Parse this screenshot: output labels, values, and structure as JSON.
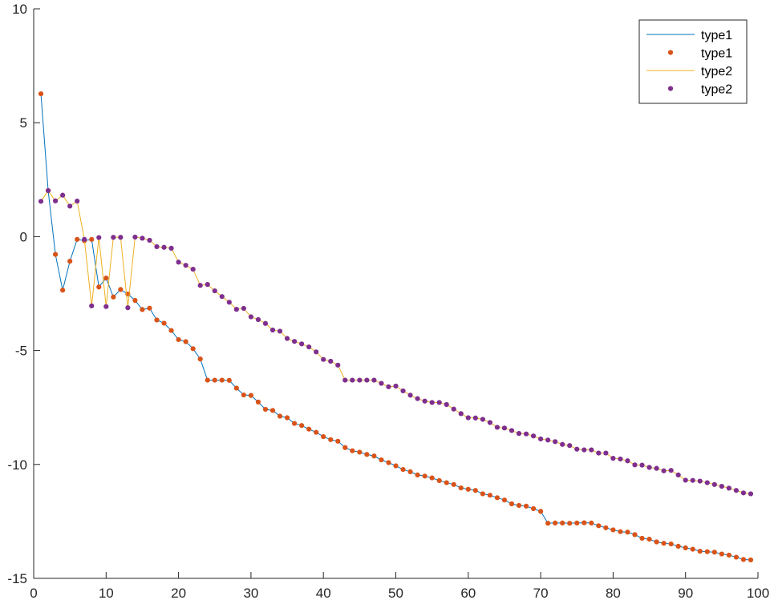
{
  "chart_data": {
    "type": "line",
    "xlim": [
      0,
      100
    ],
    "ylim": [
      -15,
      10
    ],
    "xticks": [
      0,
      10,
      20,
      30,
      40,
      50,
      60,
      70,
      80,
      90,
      100
    ],
    "yticks": [
      -15,
      -10,
      -5,
      0,
      5,
      10
    ],
    "grid": false,
    "legend_placement": "top-right",
    "x": [
      1,
      2,
      3,
      4,
      5,
      6,
      7,
      8,
      9,
      10,
      11,
      12,
      13,
      14,
      15,
      16,
      17,
      18,
      19,
      20,
      21,
      22,
      23,
      24,
      25,
      26,
      27,
      28,
      29,
      30,
      31,
      32,
      33,
      34,
      35,
      36,
      37,
      38,
      39,
      40,
      41,
      42,
      43,
      44,
      45,
      46,
      47,
      48,
      49,
      50,
      51,
      52,
      53,
      54,
      55,
      56,
      57,
      58,
      59,
      60,
      61,
      62,
      63,
      64,
      65,
      66,
      67,
      68,
      69,
      70,
      71,
      72,
      73,
      74,
      75,
      76,
      77,
      78,
      79,
      80,
      81,
      82,
      83,
      84,
      85,
      86,
      87,
      88,
      89,
      90,
      91,
      92,
      93,
      94,
      95,
      96,
      97,
      98,
      99
    ],
    "series": [
      {
        "name": "type1",
        "style": "line",
        "color": "#0072BD",
        "values": [
          6.27,
          2.02,
          -0.78,
          -2.35,
          -1.08,
          -0.12,
          -0.18,
          -0.12,
          -2.21,
          -1.82,
          -2.65,
          -2.32,
          -2.52,
          -2.8,
          -3.2,
          -3.14,
          -3.66,
          -3.8,
          -4.12,
          -4.52,
          -4.61,
          -4.92,
          -5.37,
          -6.3,
          -6.3,
          -6.3,
          -6.31,
          -6.65,
          -6.95,
          -6.97,
          -7.26,
          -7.58,
          -7.63,
          -7.88,
          -7.95,
          -8.2,
          -8.29,
          -8.45,
          -8.59,
          -8.78,
          -8.91,
          -8.98,
          -9.26,
          -9.4,
          -9.46,
          -9.56,
          -9.63,
          -9.8,
          -9.92,
          -10.06,
          -10.22,
          -10.32,
          -10.46,
          -10.51,
          -10.59,
          -10.71,
          -10.8,
          -10.88,
          -11.03,
          -11.09,
          -11.14,
          -11.29,
          -11.35,
          -11.46,
          -11.56,
          -11.73,
          -11.8,
          -11.83,
          -11.94,
          -12.06,
          -12.58,
          -12.57,
          -12.57,
          -12.58,
          -12.57,
          -12.56,
          -12.57,
          -12.69,
          -12.78,
          -12.87,
          -12.95,
          -12.97,
          -13.08,
          -13.24,
          -13.28,
          -13.4,
          -13.46,
          -13.49,
          -13.59,
          -13.66,
          -13.72,
          -13.81,
          -13.83,
          -13.85,
          -13.93,
          -13.98,
          -14.07,
          -14.17,
          -14.19
        ]
      },
      {
        "name": "type1",
        "style": "markers",
        "color": "#D95319",
        "values_ref": 0
      },
      {
        "name": "type2",
        "style": "line",
        "color": "#EDB120",
        "values": [
          1.55,
          2.02,
          1.57,
          1.82,
          1.34,
          1.56,
          -0.12,
          -3.04,
          -0.04,
          -3.07,
          -0.03,
          -0.03,
          -3.12,
          -0.02,
          -0.07,
          -0.16,
          -0.44,
          -0.47,
          -0.51,
          -1.12,
          -1.26,
          -1.43,
          -2.14,
          -2.1,
          -2.38,
          -2.63,
          -2.88,
          -3.19,
          -3.15,
          -3.52,
          -3.64,
          -3.81,
          -4.1,
          -4.15,
          -4.47,
          -4.6,
          -4.71,
          -4.84,
          -5.06,
          -5.39,
          -5.47,
          -5.64,
          -6.3,
          -6.3,
          -6.3,
          -6.3,
          -6.3,
          -6.44,
          -6.59,
          -6.56,
          -6.77,
          -6.96,
          -7.11,
          -7.22,
          -7.28,
          -7.28,
          -7.37,
          -7.57,
          -7.77,
          -7.95,
          -7.96,
          -8.02,
          -8.16,
          -8.37,
          -8.4,
          -8.51,
          -8.64,
          -8.66,
          -8.75,
          -8.88,
          -8.93,
          -9.0,
          -9.12,
          -9.17,
          -9.33,
          -9.36,
          -9.36,
          -9.5,
          -9.5,
          -9.73,
          -9.76,
          -9.84,
          -10.02,
          -10.03,
          -10.13,
          -10.17,
          -10.28,
          -10.26,
          -10.46,
          -10.69,
          -10.7,
          -10.73,
          -10.8,
          -10.88,
          -10.96,
          -11.04,
          -11.14,
          -11.25,
          -11.29
        ]
      },
      {
        "name": "type2",
        "style": "markers",
        "color": "#7E2F8E",
        "values_ref": 2
      }
    ]
  }
}
